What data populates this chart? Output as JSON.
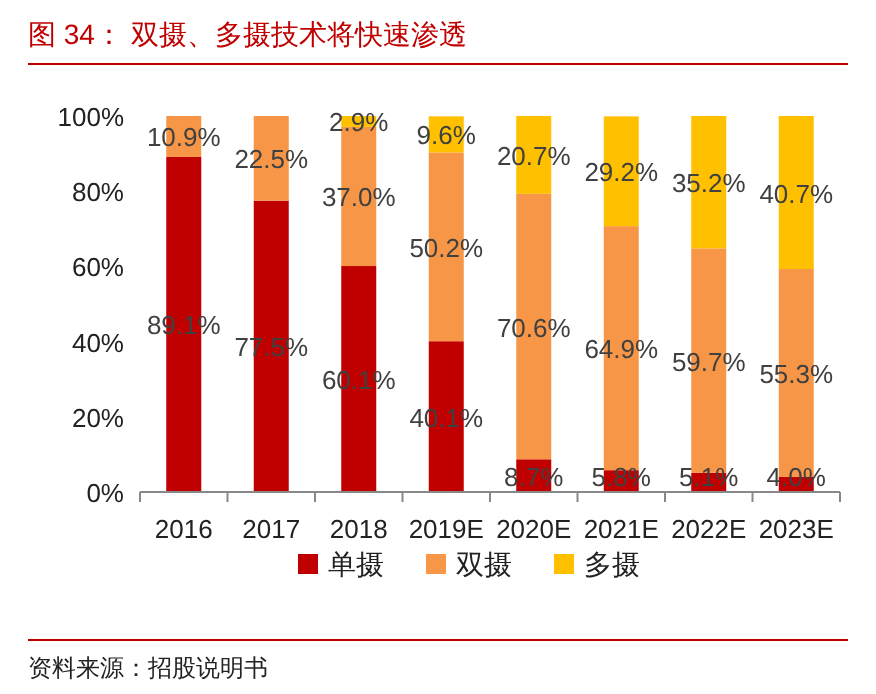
{
  "chart_data": {
    "type": "bar",
    "stacked": true,
    "title": "图 34：  双摄、多摄技术将快速渗透",
    "categories": [
      "2016",
      "2017",
      "2018",
      "2019E",
      "2020E",
      "2021E",
      "2022E",
      "2023E"
    ],
    "series": [
      {
        "name": "单摄",
        "color": "#c00000",
        "values": [
          89.1,
          77.5,
          60.1,
          40.1,
          8.7,
          5.8,
          5.1,
          4.0
        ],
        "value_labels": [
          "89.1%",
          "77.5%",
          "60.1%",
          "40.1%",
          "8.7%",
          "5.8%",
          "5.1%",
          "4.0%"
        ]
      },
      {
        "name": "双摄",
        "color": "#f79646",
        "values": [
          10.9,
          22.5,
          37.0,
          50.2,
          70.6,
          64.9,
          59.7,
          55.3
        ],
        "value_labels": [
          "10.9%",
          "22.5%",
          "37.0%",
          "50.2%",
          "70.6%",
          "64.9%",
          "59.7%",
          "55.3%"
        ]
      },
      {
        "name": "多摄",
        "color": "#ffc000",
        "values": [
          null,
          null,
          2.9,
          9.6,
          20.7,
          29.2,
          35.2,
          40.7
        ],
        "value_labels": [
          null,
          null,
          "2.9%",
          "9.6%",
          "20.7%",
          "29.2%",
          "35.2%",
          "40.7%"
        ]
      }
    ],
    "ylim": [
      0,
      100
    ],
    "yticks": [
      {
        "value": 0,
        "label": "0%"
      },
      {
        "value": 20,
        "label": "20%"
      },
      {
        "value": 40,
        "label": "40%"
      },
      {
        "value": 60,
        "label": "60%"
      },
      {
        "value": 80,
        "label": "80%"
      },
      {
        "value": 100,
        "label": "100%"
      }
    ],
    "grid": false,
    "legend": "bottom",
    "annotations": [
      "资料来源：招股说明书"
    ]
  }
}
